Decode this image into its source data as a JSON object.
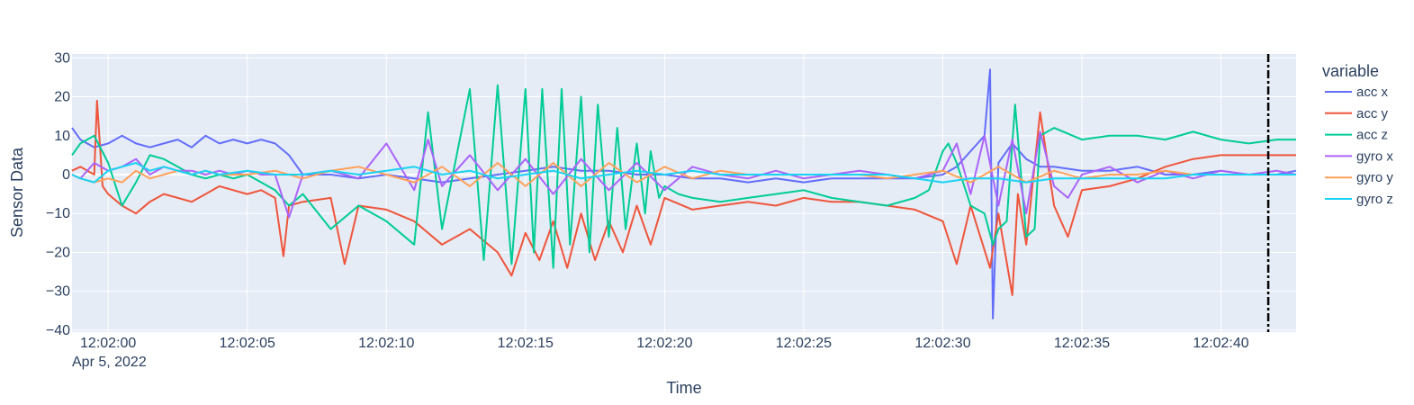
{
  "chart_data": {
    "type": "line",
    "title": "",
    "xlabel": "Time",
    "ylabel": "Sensor Data",
    "x_unit": "seconds after 12:02:00",
    "xlim": [
      -1.3,
      42.7
    ],
    "ylim": [
      -40.5,
      31
    ],
    "x_ticks": [
      {
        "value": 0,
        "label": "12:02:00"
      },
      {
        "value": 5,
        "label": "12:02:05"
      },
      {
        "value": 10,
        "label": "12:02:10"
      },
      {
        "value": 15,
        "label": "12:02:15"
      },
      {
        "value": 20,
        "label": "12:02:20"
      },
      {
        "value": 25,
        "label": "12:02:25"
      },
      {
        "value": 30,
        "label": "12:02:30"
      },
      {
        "value": 35,
        "label": "12:02:35"
      },
      {
        "value": 40,
        "label": "12:02:40"
      }
    ],
    "x_date_label": "Apr 5, 2022",
    "y_ticks": [
      {
        "value": 30,
        "label": "30"
      },
      {
        "value": 20,
        "label": "20"
      },
      {
        "value": 10,
        "label": "10"
      },
      {
        "value": 0,
        "label": "0"
      },
      {
        "value": -10,
        "label": "−10"
      },
      {
        "value": -20,
        "label": "−20"
      },
      {
        "value": -30,
        "label": "−30"
      },
      {
        "value": -40,
        "label": "−40"
      }
    ],
    "vline": {
      "x": 41.7,
      "style": "dashdot",
      "color": "#000000"
    },
    "legend": {
      "title": "variable",
      "position": "right"
    },
    "series": [
      {
        "name": "acc x",
        "color": "#636efa",
        "x": [
          -1.3,
          -1,
          -0.5,
          0,
          0.5,
          1,
          1.5,
          2,
          2.5,
          3,
          3.5,
          4,
          4.5,
          5,
          5.5,
          6,
          6.5,
          7,
          8,
          9,
          10,
          11,
          12,
          13,
          14,
          15,
          16,
          17,
          18,
          19,
          20,
          21,
          22,
          23,
          24,
          25,
          26,
          27,
          28,
          29,
          30,
          30.5,
          31,
          31.5,
          31.7,
          31.8,
          32,
          32.5,
          33,
          33.5,
          34,
          35,
          36,
          37,
          38,
          39,
          40,
          41,
          42,
          42.7
        ],
        "y": [
          12,
          9,
          7,
          8,
          10,
          8,
          7,
          8,
          9,
          7,
          10,
          8,
          9,
          8,
          9,
          8,
          5,
          0,
          0,
          -1,
          0,
          -1,
          -2,
          -1,
          0,
          1,
          2,
          1,
          1,
          0,
          0,
          -1,
          -1,
          -2,
          -1,
          -2,
          -1,
          -1,
          -1,
          -1,
          0,
          2,
          6,
          10,
          27,
          -37,
          3,
          8,
          4,
          2,
          2,
          1,
          1,
          2,
          0,
          0,
          1,
          0,
          0,
          1
        ]
      },
      {
        "name": "acc y",
        "color": "#ef553b",
        "x": [
          -1.3,
          -1,
          -0.5,
          -0.4,
          -0.2,
          0,
          0.5,
          1,
          1.5,
          2,
          2.5,
          3,
          3.5,
          4,
          4.5,
          5,
          5.5,
          6,
          6.3,
          6.5,
          7,
          8,
          8.5,
          9,
          10,
          11,
          12,
          13,
          14,
          14.5,
          15,
          15.5,
          16,
          16.5,
          17,
          17.5,
          18,
          18.5,
          19,
          19.5,
          20,
          21,
          22,
          23,
          24,
          25,
          26,
          27,
          28,
          29,
          30,
          30.5,
          31,
          31.7,
          32,
          32.5,
          32.7,
          33,
          33.5,
          34,
          34.5,
          35,
          36,
          37,
          38,
          39,
          40,
          41,
          42,
          42.7
        ],
        "y": [
          1,
          2,
          0,
          19,
          -3,
          -5,
          -8,
          -10,
          -7,
          -5,
          -6,
          -7,
          -5,
          -3,
          -4,
          -5,
          -4,
          -6,
          -21,
          -8,
          -7,
          -6,
          -23,
          -8,
          -9,
          -12,
          -18,
          -14,
          -20,
          -26,
          -15,
          -22,
          -12,
          -24,
          -10,
          -22,
          -12,
          -20,
          -8,
          -18,
          -6,
          -9,
          -8,
          -7,
          -8,
          -6,
          -7,
          -7,
          -8,
          -9,
          -12,
          -23,
          -8,
          -24,
          -10,
          -31,
          -5,
          -18,
          16,
          -8,
          -16,
          -4,
          -3,
          -1,
          2,
          4,
          5,
          5,
          5,
          5
        ]
      },
      {
        "name": "acc z",
        "color": "#00cc96",
        "x": [
          -1.3,
          -1,
          -0.5,
          0,
          0.5,
          1,
          1.5,
          2,
          2.5,
          3,
          3.5,
          4,
          4.5,
          5,
          5.5,
          6,
          6.5,
          7,
          8,
          9,
          10,
          11,
          11.5,
          12,
          13,
          13.5,
          14,
          14.5,
          15,
          15.3,
          15.6,
          16,
          16.3,
          16.6,
          17,
          17.3,
          17.6,
          18,
          18.3,
          18.6,
          19,
          19.3,
          19.5,
          19.8,
          20,
          20.5,
          21,
          22,
          23,
          24,
          25,
          26,
          27,
          28,
          29,
          29.5,
          30,
          30.2,
          30.5,
          31,
          31.5,
          31.8,
          32,
          32.3,
          32.6,
          33,
          33.3,
          33.5,
          34,
          35,
          36,
          37,
          38,
          39,
          40,
          41,
          42,
          42.7
        ],
        "y": [
          5,
          8,
          10,
          3,
          -8,
          -2,
          5,
          4,
          2,
          0,
          -1,
          0,
          -1,
          0,
          -2,
          -4,
          -8,
          -5,
          -14,
          -8,
          -12,
          -18,
          16,
          -14,
          22,
          -22,
          23,
          -23,
          22,
          -20,
          22,
          -24,
          22,
          -18,
          20,
          -20,
          18,
          -16,
          12,
          -14,
          8,
          -10,
          6,
          -6,
          -3,
          -5,
          -6,
          -7,
          -6,
          -5,
          -4,
          -6,
          -7,
          -8,
          -6,
          -4,
          6,
          8,
          3,
          -8,
          -10,
          -18,
          -14,
          -12,
          18,
          -16,
          -14,
          10,
          12,
          9,
          10,
          10,
          9,
          11,
          9,
          8,
          9,
          9
        ]
      },
      {
        "name": "gyro x",
        "color": "#ab63fa",
        "x": [
          -1.3,
          -1,
          -0.5,
          0,
          0.5,
          1,
          1.5,
          2,
          2.5,
          3,
          3.5,
          4,
          4.5,
          5,
          5.5,
          6,
          6.5,
          7,
          8,
          9,
          10,
          11,
          11.5,
          12,
          13,
          14,
          15,
          16,
          17,
          18,
          19,
          20,
          21,
          22,
          23,
          24,
          25,
          26,
          27,
          28,
          29,
          30,
          30.5,
          31,
          31.5,
          32,
          32.5,
          33,
          33.5,
          34,
          34.5,
          35,
          36,
          37,
          38,
          39,
          40,
          41,
          42,
          42.7
        ],
        "y": [
          0,
          -1,
          3,
          1,
          2,
          4,
          0,
          2,
          1,
          1,
          0,
          1,
          0,
          1,
          0,
          0,
          -11,
          0,
          1,
          -1,
          8,
          -4,
          9,
          -3,
          5,
          -4,
          4,
          -5,
          4,
          -4,
          3,
          -4,
          2,
          0,
          -1,
          1,
          -1,
          0,
          1,
          0,
          -1,
          1,
          8,
          -5,
          10,
          -8,
          9,
          -10,
          11,
          -3,
          -6,
          0,
          2,
          -2,
          1,
          -1,
          1,
          0,
          1,
          0
        ]
      },
      {
        "name": "gyro y",
        "color": "#ffa15a",
        "x": [
          -1.3,
          -1,
          -0.5,
          0,
          0.5,
          1,
          1.5,
          2,
          2.5,
          3,
          3.5,
          4,
          5,
          6,
          7,
          8,
          9,
          10,
          11,
          12,
          13,
          14,
          15,
          16,
          17,
          18,
          19,
          20,
          21,
          22,
          23,
          24,
          25,
          26,
          27,
          28,
          29,
          30,
          31,
          32,
          33,
          34,
          35,
          36,
          37,
          38,
          39,
          40,
          41,
          42,
          42.7
        ],
        "y": [
          0,
          -1,
          -2,
          -1,
          -2,
          1,
          -1,
          0,
          1,
          0,
          1,
          0,
          0,
          1,
          -1,
          1,
          2,
          0,
          -2,
          2,
          -3,
          3,
          -3,
          3,
          -3,
          3,
          -2,
          2,
          -1,
          1,
          0,
          0,
          0,
          0,
          0,
          -1,
          0,
          1,
          -2,
          2,
          -2,
          1,
          -1,
          0,
          0,
          1,
          0,
          0,
          0,
          0,
          0
        ]
      },
      {
        "name": "gyro z",
        "color": "#19d3f3",
        "x": [
          -1.3,
          -1,
          -0.5,
          0,
          0.5,
          1,
          1.5,
          2,
          2.5,
          3,
          3.5,
          4,
          5,
          6,
          7,
          8,
          9,
          10,
          11,
          12,
          13,
          14,
          15,
          16,
          17,
          18,
          19,
          20,
          21,
          22,
          23,
          24,
          25,
          26,
          27,
          28,
          29,
          30,
          31,
          32,
          33,
          34,
          35,
          36,
          37,
          38,
          39,
          40,
          41,
          42,
          42.7
        ],
        "y": [
          0,
          -1,
          -2,
          1,
          2,
          3,
          1,
          2,
          1,
          0,
          1,
          0,
          1,
          0,
          0,
          1,
          0,
          1,
          2,
          0,
          1,
          -1,
          0,
          1,
          -1,
          0,
          1,
          0,
          1,
          0,
          0,
          0,
          0,
          0,
          0,
          0,
          -1,
          -2,
          -1,
          -1,
          -2,
          -1,
          -1,
          -1,
          -1,
          -1,
          0,
          0,
          0,
          0,
          0
        ]
      }
    ]
  }
}
